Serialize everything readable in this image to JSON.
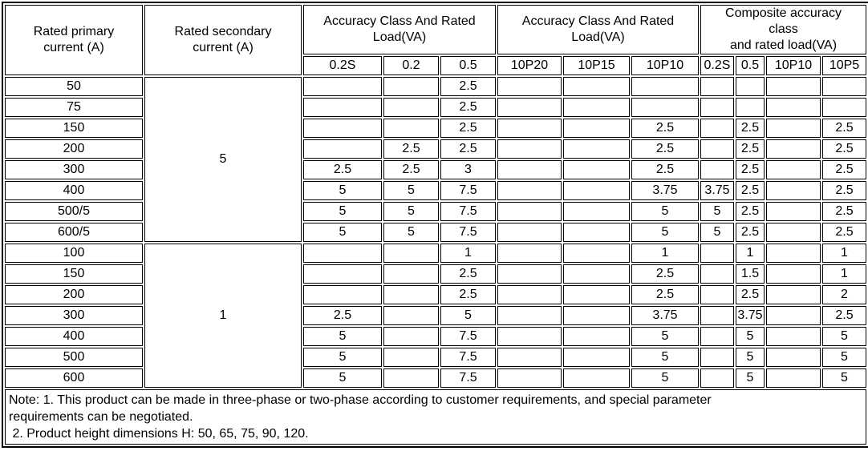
{
  "table": {
    "header": {
      "primary": "Rated primary\ncurrent (A)",
      "secondary": "Rated secondary\ncurrent (A)",
      "group1": "Accuracy Class And Rated\nLoad(VA)",
      "group2": "Accuracy Class And Rated\nLoad(VA)",
      "group3": "Composite accuracy\nclass\nand rated load(VA)",
      "subcols": [
        "0.2S",
        "0.2",
        "0.5",
        "10P20",
        "10P15",
        "10P10",
        "0.2S",
        "0.5",
        "10P10",
        "10P5"
      ]
    },
    "groups": [
      {
        "secondary": "5",
        "rows": [
          {
            "primary": "50",
            "values": [
              "",
              "",
              "2.5",
              "",
              "",
              "",
              "",
              "",
              "",
              ""
            ]
          },
          {
            "primary": "75",
            "values": [
              "",
              "",
              "2.5",
              "",
              "",
              "",
              "",
              "",
              "",
              ""
            ]
          },
          {
            "primary": "150",
            "values": [
              "",
              "",
              "2.5",
              "",
              "",
              "2.5",
              "",
              "2.5",
              "",
              "2.5"
            ]
          },
          {
            "primary": "200",
            "values": [
              "",
              "2.5",
              "2.5",
              "",
              "",
              "2.5",
              "",
              "2.5",
              "",
              "2.5"
            ]
          },
          {
            "primary": "300",
            "values": [
              "2.5",
              "2.5",
              "3",
              "",
              "",
              "2.5",
              "",
              "2.5",
              "",
              "2.5"
            ]
          },
          {
            "primary": "400",
            "values": [
              "5",
              "5",
              "7.5",
              "",
              "",
              "3.75",
              "3.75",
              "2.5",
              "",
              "2.5"
            ]
          },
          {
            "primary": "500/5",
            "values": [
              "5",
              "5",
              "7.5",
              "",
              "",
              "5",
              "5",
              "2.5",
              "",
              "2.5"
            ]
          },
          {
            "primary": "600/5",
            "values": [
              "5",
              "5",
              "7.5",
              "",
              "",
              "5",
              "5",
              "2.5",
              "",
              "2.5"
            ]
          }
        ]
      },
      {
        "secondary": "1",
        "rows": [
          {
            "primary": "100",
            "values": [
              "",
              "",
              "1",
              "",
              "",
              "1",
              "",
              "1",
              "",
              "1"
            ]
          },
          {
            "primary": "150",
            "values": [
              "",
              "",
              "2.5",
              "",
              "",
              "2.5",
              "",
              "1.5",
              "",
              "1"
            ]
          },
          {
            "primary": "200",
            "values": [
              "",
              "",
              "2.5",
              "",
              "",
              "2.5",
              "",
              "2.5",
              "",
              "2"
            ]
          },
          {
            "primary": "300",
            "values": [
              "2.5",
              "",
              "5",
              "",
              "",
              "3.75",
              "",
              "3.75",
              "",
              "2.5"
            ]
          },
          {
            "primary": "400",
            "values": [
              "5",
              "",
              "7.5",
              "",
              "",
              "5",
              "",
              "5",
              "",
              "5"
            ]
          },
          {
            "primary": "500",
            "values": [
              "5",
              "",
              "7.5",
              "",
              "",
              "5",
              "",
              "5",
              "",
              "5"
            ]
          },
          {
            "primary": "600",
            "values": [
              "5",
              "",
              "7.5",
              "",
              "",
              "5",
              "",
              "5",
              "",
              "5"
            ]
          }
        ]
      }
    ],
    "notes": [
      "Note: 1. This product can be made in three-phase or two-phase according to customer requirements, and special parameter",
      "requirements can be negotiated.",
      " 2. Product height dimensions H: 50, 65, 75, 90, 120."
    ]
  }
}
